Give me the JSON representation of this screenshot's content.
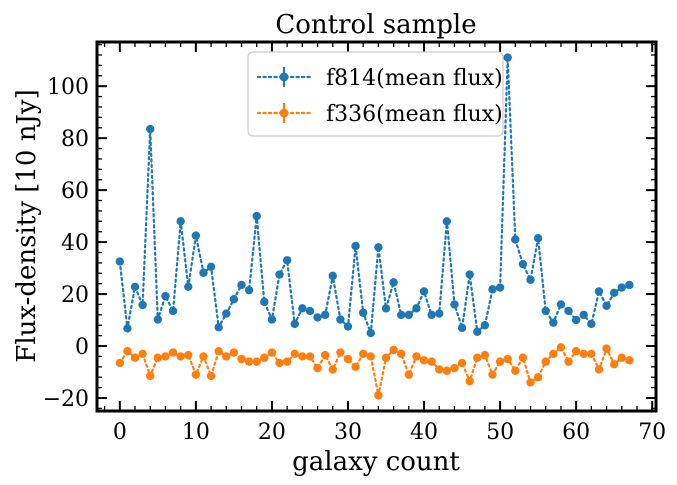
{
  "chart_data": {
    "type": "line",
    "title": "Control sample",
    "xlabel": "galaxy count",
    "ylabel": "Flux-density [10 nJy]",
    "xlim": [
      -3,
      70.5
    ],
    "ylim": [
      -25,
      117
    ],
    "x_ticks": [
      0,
      10,
      20,
      30,
      40,
      50,
      60,
      70
    ],
    "y_ticks": [
      -20,
      0,
      20,
      40,
      60,
      80,
      100
    ],
    "legend_position": "upper-center",
    "grid": false,
    "series": [
      {
        "name": "f814(mean flux)",
        "color": "#1f77b4",
        "marker": "circle",
        "linestyle": "dotted",
        "x": [
          0,
          1,
          2,
          3,
          4,
          5,
          6,
          7,
          8,
          9,
          10,
          11,
          12,
          13,
          14,
          15,
          16,
          17,
          18,
          19,
          20,
          21,
          22,
          23,
          24,
          25,
          26,
          27,
          28,
          29,
          30,
          31,
          32,
          33,
          34,
          35,
          36,
          37,
          38,
          39,
          40,
          41,
          42,
          43,
          44,
          45,
          46,
          47,
          48,
          49,
          50,
          51,
          52,
          53,
          54,
          55,
          56,
          57,
          58,
          59,
          60,
          61,
          62,
          63,
          64,
          65,
          66,
          67
        ],
        "values": [
          32.5,
          6.8,
          22.8,
          15.8,
          83.5,
          10.2,
          19.2,
          13.5,
          48.0,
          22.8,
          42.5,
          28.2,
          30.5,
          7.2,
          12.5,
          18.0,
          23.5,
          21.5,
          50.0,
          17.0,
          10.2,
          27.5,
          33.0,
          8.5,
          14.5,
          13.5,
          11.0,
          12.0,
          27.0,
          10.2,
          7.5,
          38.5,
          12.8,
          5.0,
          38.0,
          14.5,
          24.5,
          12.0,
          12.0,
          14.5,
          21.0,
          12.0,
          12.5,
          48.0,
          16.0,
          7.0,
          27.5,
          5.5,
          8.0,
          21.8,
          22.5,
          111.0,
          41.0,
          31.5,
          25.5,
          41.5,
          13.5,
          9.0,
          16.0,
          13.5,
          10.0,
          12.0,
          8.5,
          21.0,
          15.5,
          20.5,
          22.5,
          23.5
        ]
      },
      {
        "name": "f336(mean flux)",
        "color": "#ff7f0e",
        "marker": "circle",
        "linestyle": "dotted",
        "x": [
          0,
          1,
          2,
          3,
          4,
          5,
          6,
          7,
          8,
          9,
          10,
          11,
          12,
          13,
          14,
          15,
          16,
          17,
          18,
          19,
          20,
          21,
          22,
          23,
          24,
          25,
          26,
          27,
          28,
          29,
          30,
          31,
          32,
          33,
          34,
          35,
          36,
          37,
          38,
          39,
          40,
          41,
          42,
          43,
          44,
          45,
          46,
          47,
          48,
          49,
          50,
          51,
          52,
          53,
          54,
          55,
          56,
          57,
          58,
          59,
          60,
          61,
          62,
          63,
          64,
          65,
          66,
          67
        ],
        "values": [
          -6.5,
          -2.0,
          -4.5,
          -3.0,
          -11.5,
          -4.5,
          -4.0,
          -2.5,
          -4.0,
          -3.5,
          -11.0,
          -4.0,
          -11.5,
          -2.0,
          -4.0,
          -2.5,
          -5.0,
          -6.0,
          -6.0,
          -4.5,
          -2.5,
          -6.5,
          -6.0,
          -3.0,
          -4.0,
          -4.0,
          -8.5,
          -3.5,
          -9.0,
          -2.5,
          -5.0,
          -8.0,
          -3.0,
          -4.0,
          -19.0,
          -4.5,
          -1.5,
          -3.0,
          -11.0,
          -4.0,
          -5.5,
          -6.0,
          -9.0,
          -9.5,
          -8.5,
          -6.5,
          -13.5,
          -4.5,
          -3.5,
          -11.0,
          -6.0,
          -5.0,
          -9.5,
          -4.5,
          -14.0,
          -12.0,
          -6.0,
          -3.0,
          -0.5,
          -6.0,
          -2.0,
          -3.0,
          -3.0,
          -9.0,
          -1.0,
          -7.0,
          -4.5,
          -5.5
        ]
      }
    ]
  }
}
